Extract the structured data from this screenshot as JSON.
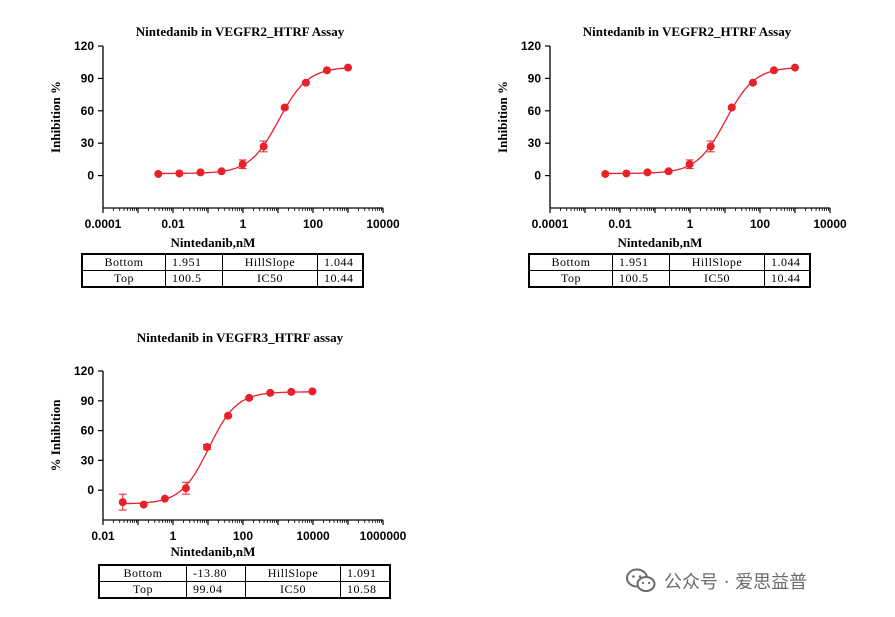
{
  "chart_data": [
    {
      "type": "scatter",
      "title": "Nintedanib in VEGFR2_HTRF Assay",
      "xlabel": "Nintedanib,nM",
      "ylabel": "Inhibition %",
      "x_scale": "log",
      "xlim": [
        0.0001,
        10000
      ],
      "ylim": [
        -30,
        120
      ],
      "x_ticks": [
        "0.0001",
        "0.01",
        "1",
        "100",
        "10000"
      ],
      "y_ticks": [
        "120",
        "90",
        "60",
        "30",
        "0"
      ],
      "color": "#e8202a",
      "fit": {
        "bottom": 1.951,
        "top": 100.5,
        "ic50": 10.44,
        "hill": 1.044
      },
      "points": [
        {
          "x": 0.0038,
          "y": 1.5,
          "err": 0
        },
        {
          "x": 0.0152,
          "y": 2.0,
          "err": 0
        },
        {
          "x": 0.061,
          "y": 3.0,
          "err": 0
        },
        {
          "x": 0.244,
          "y": 4.0,
          "err": 1.0
        },
        {
          "x": 0.977,
          "y": 10.5,
          "err": 4.0
        },
        {
          "x": 3.9,
          "y": 27.0,
          "err": 5.0
        },
        {
          "x": 15.6,
          "y": 63.0,
          "err": 1.5
        },
        {
          "x": 62.5,
          "y": 86.0,
          "err": 1.0
        },
        {
          "x": 250,
          "y": 97.5,
          "err": 0
        },
        {
          "x": 1000,
          "y": 100.0,
          "err": 0
        }
      ]
    },
    {
      "type": "scatter",
      "title": "Nintedanib in VEGFR2_HTRF Assay",
      "xlabel": "Nintedanib,nM",
      "ylabel": "Inhibition %",
      "x_scale": "log",
      "xlim": [
        0.0001,
        10000
      ],
      "ylim": [
        -30,
        120
      ],
      "x_ticks": [
        "0.0001",
        "0.01",
        "1",
        "100",
        "10000"
      ],
      "y_ticks": [
        "120",
        "90",
        "60",
        "30",
        "0"
      ],
      "color": "#e8202a",
      "fit": {
        "bottom": 1.951,
        "top": 100.5,
        "ic50": 10.44,
        "hill": 1.044
      },
      "points": [
        {
          "x": 0.0038,
          "y": 1.5,
          "err": 0
        },
        {
          "x": 0.0152,
          "y": 2.0,
          "err": 0
        },
        {
          "x": 0.061,
          "y": 3.0,
          "err": 0
        },
        {
          "x": 0.244,
          "y": 4.0,
          "err": 1.0
        },
        {
          "x": 0.977,
          "y": 10.5,
          "err": 4.0
        },
        {
          "x": 3.9,
          "y": 27.0,
          "err": 5.0
        },
        {
          "x": 15.6,
          "y": 63.0,
          "err": 1.5
        },
        {
          "x": 62.5,
          "y": 86.0,
          "err": 1.0
        },
        {
          "x": 250,
          "y": 97.5,
          "err": 0
        },
        {
          "x": 1000,
          "y": 100.0,
          "err": 0
        }
      ]
    },
    {
      "type": "scatter",
      "title": "Nintedanib in VEGFR3_HTRF assay",
      "xlabel": "Nintedanib,nM",
      "ylabel": "% Inhibition",
      "x_scale": "log",
      "xlim": [
        0.01,
        1000000
      ],
      "ylim": [
        -30,
        120
      ],
      "x_ticks": [
        "0.01",
        "1",
        "100",
        "10000",
        "1000000"
      ],
      "y_ticks": [
        "120",
        "90",
        "60",
        "30",
        "0"
      ],
      "color": "#e8202a",
      "fit": {
        "bottom": -13.8,
        "top": 99.04,
        "ic50": 10.58,
        "hill": 1.091
      },
      "points": [
        {
          "x": 0.0366,
          "y": -12.0,
          "err": 8.0
        },
        {
          "x": 0.146,
          "y": -14.5,
          "err": 0
        },
        {
          "x": 0.586,
          "y": -8.5,
          "err": 0
        },
        {
          "x": 2.34,
          "y": 2.0,
          "err": 6.0
        },
        {
          "x": 9.38,
          "y": 43.5,
          "err": 2.5
        },
        {
          "x": 37.5,
          "y": 75.0,
          "err": 1.0
        },
        {
          "x": 150,
          "y": 93.0,
          "err": 0
        },
        {
          "x": 600,
          "y": 98.0,
          "err": 0
        },
        {
          "x": 2400,
          "y": 99.0,
          "err": 0
        },
        {
          "x": 9600,
          "y": 99.5,
          "err": 0
        }
      ]
    }
  ],
  "tables": [
    {
      "bottom_label": "Bottom",
      "bottom_value": "1.951",
      "hill_label": "HillSlope",
      "hill_value": "1.044",
      "top_label": "Top",
      "top_value": "100.5",
      "ic50_label": "IC50",
      "ic50_value": "10.44"
    },
    {
      "bottom_label": "Bottom",
      "bottom_value": "1.951",
      "hill_label": "HillSlope",
      "hill_value": "1.044",
      "top_label": "Top",
      "top_value": "100.5",
      "ic50_label": "IC50",
      "ic50_value": "10.44"
    },
    {
      "bottom_label": "Bottom",
      "bottom_value": "-13.80",
      "hill_label": "HillSlope",
      "hill_value": "1.091",
      "top_label": "Top",
      "top_value": "99.04",
      "ic50_label": "IC50",
      "ic50_value": "10.58"
    }
  ],
  "watermark": {
    "text": "公众号 · 爱思益普",
    "icon": "wechat-icon"
  }
}
